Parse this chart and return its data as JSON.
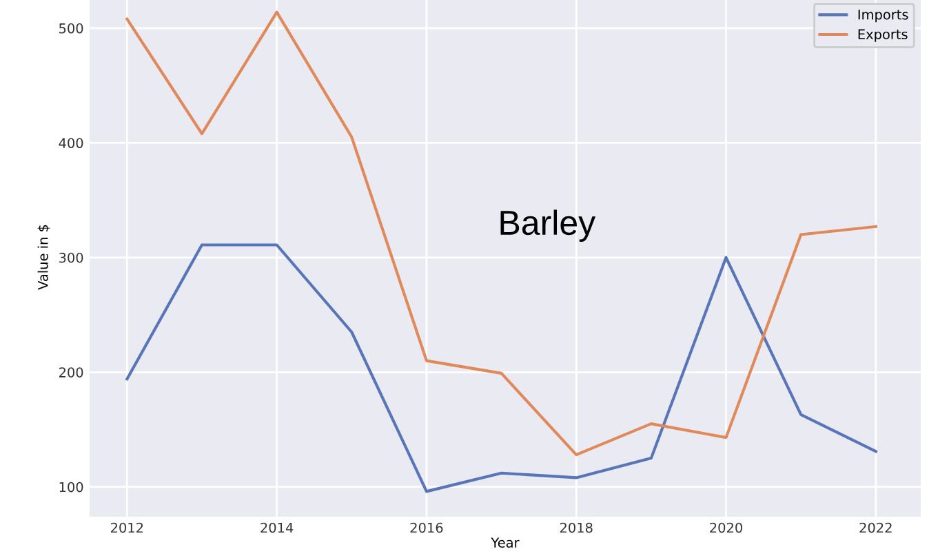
{
  "chart_data": {
    "type": "line",
    "title": "Barley",
    "xlabel": "Year",
    "ylabel": "Value in $",
    "x": [
      2012,
      2013,
      2014,
      2015,
      2016,
      2017,
      2018,
      2019,
      2020,
      2021,
      2022
    ],
    "series": [
      {
        "name": "Imports",
        "color": "#5875b8",
        "values": [
          194,
          311,
          311,
          235,
          96,
          112,
          108,
          125,
          300,
          163,
          131
        ]
      },
      {
        "name": "Exports",
        "color": "#e08a5c",
        "values": [
          508,
          408,
          514,
          405,
          210,
          199,
          128,
          155,
          143,
          320,
          327
        ]
      }
    ],
    "xlim": [
      2011.5,
      2022.6
    ],
    "ylim": [
      74,
      527
    ],
    "xticks": [
      2012,
      2014,
      2016,
      2018,
      2020,
      2022
    ],
    "yticks": [
      100,
      200,
      300,
      400,
      500
    ],
    "grid": true,
    "legend": "top right",
    "marker": "none",
    "line_style": "solid"
  }
}
